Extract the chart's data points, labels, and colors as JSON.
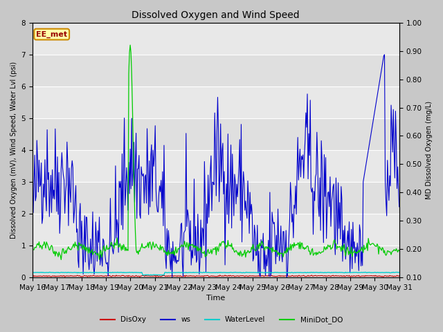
{
  "title": "Dissolved Oxygen and Wind Speed",
  "xlabel": "Time",
  "ylabel_left": "Dissolved Oxygen (mV), Wind Speed, Water Lvl (psi)",
  "ylabel_right": "MD Dissolved Oxygen (mg/L)",
  "ylim_left": [
    0.0,
    8.0
  ],
  "ylim_right": [
    0.1,
    1.0
  ],
  "annotation": "EE_met",
  "legend_labels": [
    "DisOxy",
    "ws",
    "WaterLevel",
    "MiniDot_DO"
  ],
  "legend_colors": [
    "#cc0000",
    "#0000cc",
    "#00cccc",
    "#00cc00"
  ],
  "fig_bg_color": "#c8c8c8",
  "plot_bg_color": "#e8e8e8",
  "x_tick_labels": [
    "May 16",
    "May 17",
    "May 18",
    "May 19",
    "May 20",
    "May 21",
    "May 22",
    "May 23",
    "May 24",
    "May 25",
    "May 26",
    "May 27",
    "May 28",
    "May 29",
    "May 30",
    "May 31"
  ],
  "num_points": 500,
  "seed": 42
}
